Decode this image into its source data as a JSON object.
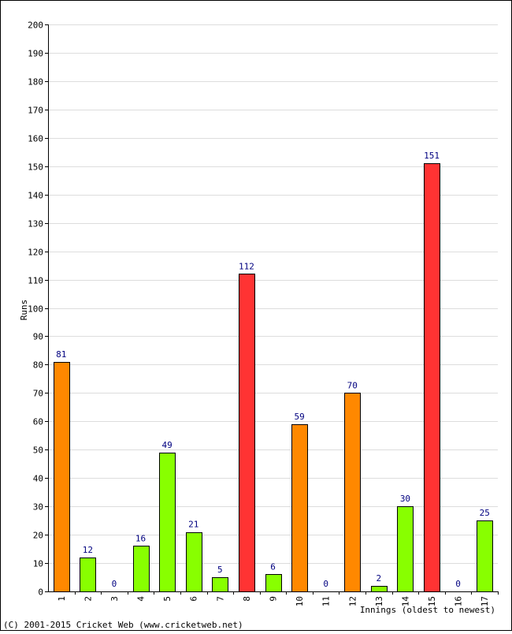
{
  "chart_data": {
    "type": "bar",
    "title": "",
    "xlabel": "Innings (oldest to newest)",
    "ylabel": "Runs",
    "ylim": [
      0,
      200
    ],
    "ytick_step": 10,
    "grid": true,
    "categories": [
      "1",
      "2",
      "3",
      "4",
      "5",
      "6",
      "7",
      "8",
      "9",
      "10",
      "11",
      "12",
      "13",
      "14",
      "15",
      "16",
      "17"
    ],
    "values": [
      81,
      12,
      0,
      16,
      49,
      21,
      5,
      112,
      6,
      59,
      0,
      70,
      2,
      30,
      151,
      0,
      25
    ],
    "colors": [
      "#ff8800",
      "#88ff00",
      "#88ff00",
      "#88ff00",
      "#88ff00",
      "#88ff00",
      "#88ff00",
      "#ff3333",
      "#88ff00",
      "#ff8800",
      "#88ff00",
      "#ff8800",
      "#88ff00",
      "#88ff00",
      "#ff3333",
      "#88ff00",
      "#88ff00"
    ],
    "palette": {
      "under_50": "#88ff00",
      "fifty": "#ff8800",
      "hundred": "#ff3333",
      "grid": "#dddddd",
      "value_label": "#000080"
    }
  },
  "footer": {
    "copyright": "(C) 2001-2015 Cricket Web (www.cricketweb.net)"
  }
}
